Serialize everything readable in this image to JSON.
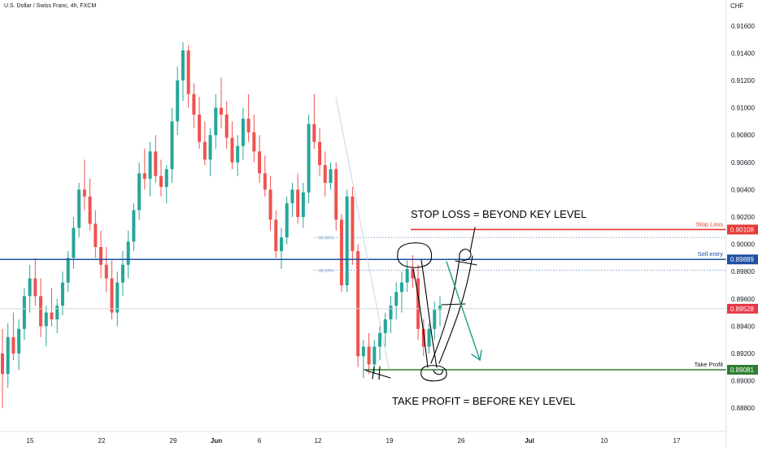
{
  "header": {
    "symbol_title": "U.S. Dollar / Swiss Franc, 4h, FXCM",
    "currency": "CHF"
  },
  "colors": {
    "up": "#26a69a",
    "down": "#ef5350",
    "stop_loss": "#e53935",
    "sell_entry": "#1e4fa3",
    "take_profit": "#2e7d32",
    "current_price": "#e53945",
    "fib": "#7ea3c9",
    "annotation_arrow": "#1f9e8a",
    "ink": "#000000"
  },
  "chart_data": {
    "type": "candlestick",
    "title": "U.S. Dollar / Swiss Franc, 4h, FXCM",
    "y_axis": {
      "unit": "CHF",
      "ylim": [
        0.8868,
        0.9175
      ],
      "ticks": [
        "0.91600",
        "0.91400",
        "0.91200",
        "0.91000",
        "0.90800",
        "0.90600",
        "0.90400",
        "0.90200",
        "0.90000",
        "0.89800",
        "0.89600",
        "0.89400",
        "0.89200",
        "0.89000",
        "0.88800"
      ]
    },
    "x_axis": {
      "ticks": [
        "15",
        "22",
        "29",
        "Jun",
        "6",
        "12",
        "19",
        "26",
        "Jul",
        "10",
        "17"
      ],
      "bold_ticks": [
        "Jun",
        "Jul"
      ]
    },
    "grid": false,
    "price_levels": [
      {
        "name": "Stop Loss",
        "value": "0.90108",
        "price": 0.90108,
        "style": "solid",
        "color": "#e53935"
      },
      {
        "name": "Sell entry",
        "value": "0.89889",
        "price": 0.89889,
        "style": "solid",
        "color": "#1e4fa3"
      },
      {
        "name": "",
        "value": "0.89528",
        "price": 0.89528,
        "style": "solid",
        "color": "#e53945"
      },
      {
        "name": "Take Profit",
        "value": "0.89081",
        "price": 0.89081,
        "style": "solid",
        "color": "#2e7d32"
      }
    ],
    "fib_levels": [
      {
        "label": "50.00%",
        "price": 0.9005
      },
      {
        "label": "38.20%",
        "price": 0.8981
      }
    ],
    "annotations": [
      "STOP LOSS = BEYOND KEY LEVEL",
      "TAKE PROFIT = BEFORE KEY LEVEL"
    ],
    "candles": [
      {
        "o": 0.892,
        "h": 0.8938,
        "l": 0.888,
        "c": 0.8905
      },
      {
        "o": 0.8905,
        "h": 0.8942,
        "l": 0.8895,
        "c": 0.8932
      },
      {
        "o": 0.8932,
        "h": 0.895,
        "l": 0.8915,
        "c": 0.892
      },
      {
        "o": 0.892,
        "h": 0.8945,
        "l": 0.8908,
        "c": 0.8938
      },
      {
        "o": 0.8938,
        "h": 0.8968,
        "l": 0.893,
        "c": 0.8962
      },
      {
        "o": 0.8962,
        "h": 0.8985,
        "l": 0.895,
        "c": 0.8975
      },
      {
        "o": 0.8975,
        "h": 0.899,
        "l": 0.8955,
        "c": 0.8962
      },
      {
        "o": 0.8962,
        "h": 0.8975,
        "l": 0.8932,
        "c": 0.894
      },
      {
        "o": 0.894,
        "h": 0.8955,
        "l": 0.8925,
        "c": 0.895
      },
      {
        "o": 0.895,
        "h": 0.8968,
        "l": 0.894,
        "c": 0.8945
      },
      {
        "o": 0.8945,
        "h": 0.896,
        "l": 0.8935,
        "c": 0.8955
      },
      {
        "o": 0.8955,
        "h": 0.898,
        "l": 0.8948,
        "c": 0.8972
      },
      {
        "o": 0.8972,
        "h": 0.8995,
        "l": 0.8965,
        "c": 0.899
      },
      {
        "o": 0.899,
        "h": 0.902,
        "l": 0.8982,
        "c": 0.9012
      },
      {
        "o": 0.9012,
        "h": 0.9045,
        "l": 0.9005,
        "c": 0.904
      },
      {
        "o": 0.904,
        "h": 0.9062,
        "l": 0.9025,
        "c": 0.9035
      },
      {
        "o": 0.9035,
        "h": 0.9048,
        "l": 0.901,
        "c": 0.9015
      },
      {
        "o": 0.9015,
        "h": 0.9025,
        "l": 0.899,
        "c": 0.8998
      },
      {
        "o": 0.8998,
        "h": 0.901,
        "l": 0.8975,
        "c": 0.8985
      },
      {
        "o": 0.8985,
        "h": 0.8998,
        "l": 0.8965,
        "c": 0.8975
      },
      {
        "o": 0.8975,
        "h": 0.8988,
        "l": 0.8945,
        "c": 0.895
      },
      {
        "o": 0.895,
        "h": 0.898,
        "l": 0.894,
        "c": 0.8972
      },
      {
        "o": 0.8972,
        "h": 0.8995,
        "l": 0.8962,
        "c": 0.8985
      },
      {
        "o": 0.8985,
        "h": 0.901,
        "l": 0.8975,
        "c": 0.9002
      },
      {
        "o": 0.9002,
        "h": 0.903,
        "l": 0.8995,
        "c": 0.9025
      },
      {
        "o": 0.9025,
        "h": 0.906,
        "l": 0.9018,
        "c": 0.9052
      },
      {
        "o": 0.9052,
        "h": 0.907,
        "l": 0.904,
        "c": 0.9048
      },
      {
        "o": 0.9048,
        "h": 0.9075,
        "l": 0.9035,
        "c": 0.9068
      },
      {
        "o": 0.9068,
        "h": 0.908,
        "l": 0.9045,
        "c": 0.905
      },
      {
        "o": 0.905,
        "h": 0.9062,
        "l": 0.9035,
        "c": 0.9042
      },
      {
        "o": 0.9042,
        "h": 0.9058,
        "l": 0.903,
        "c": 0.9055
      },
      {
        "o": 0.9055,
        "h": 0.91,
        "l": 0.9045,
        "c": 0.909
      },
      {
        "o": 0.909,
        "h": 0.913,
        "l": 0.908,
        "c": 0.912
      },
      {
        "o": 0.912,
        "h": 0.9148,
        "l": 0.9105,
        "c": 0.9142
      },
      {
        "o": 0.9142,
        "h": 0.9146,
        "l": 0.91,
        "c": 0.911
      },
      {
        "o": 0.911,
        "h": 0.9118,
        "l": 0.9085,
        "c": 0.9095
      },
      {
        "o": 0.9095,
        "h": 0.9108,
        "l": 0.907,
        "c": 0.9075
      },
      {
        "o": 0.9075,
        "h": 0.909,
        "l": 0.9058,
        "c": 0.9062
      },
      {
        "o": 0.9062,
        "h": 0.9085,
        "l": 0.905,
        "c": 0.908
      },
      {
        "o": 0.908,
        "h": 0.911,
        "l": 0.907,
        "c": 0.91
      },
      {
        "o": 0.91,
        "h": 0.9122,
        "l": 0.9085,
        "c": 0.9095
      },
      {
        "o": 0.9095,
        "h": 0.9105,
        "l": 0.907,
        "c": 0.9078
      },
      {
        "o": 0.9078,
        "h": 0.909,
        "l": 0.9055,
        "c": 0.906
      },
      {
        "o": 0.906,
        "h": 0.908,
        "l": 0.905,
        "c": 0.9072
      },
      {
        "o": 0.9072,
        "h": 0.91,
        "l": 0.9062,
        "c": 0.9092
      },
      {
        "o": 0.9092,
        "h": 0.911,
        "l": 0.9075,
        "c": 0.9082
      },
      {
        "o": 0.9082,
        "h": 0.9095,
        "l": 0.906,
        "c": 0.9068
      },
      {
        "o": 0.9068,
        "h": 0.908,
        "l": 0.9045,
        "c": 0.9052
      },
      {
        "o": 0.9052,
        "h": 0.9065,
        "l": 0.9035,
        "c": 0.904
      },
      {
        "o": 0.904,
        "h": 0.905,
        "l": 0.901,
        "c": 0.9018
      },
      {
        "o": 0.9018,
        "h": 0.9025,
        "l": 0.899,
        "c": 0.8995
      },
      {
        "o": 0.8995,
        "h": 0.9012,
        "l": 0.8982,
        "c": 0.9005
      },
      {
        "o": 0.9005,
        "h": 0.9035,
        "l": 0.9,
        "c": 0.903
      },
      {
        "o": 0.903,
        "h": 0.9045,
        "l": 0.902,
        "c": 0.904
      },
      {
        "o": 0.904,
        "h": 0.9052,
        "l": 0.9015,
        "c": 0.902
      },
      {
        "o": 0.902,
        "h": 0.9045,
        "l": 0.9012,
        "c": 0.9038
      },
      {
        "o": 0.9038,
        "h": 0.9095,
        "l": 0.903,
        "c": 0.9088
      },
      {
        "o": 0.9088,
        "h": 0.911,
        "l": 0.907,
        "c": 0.9075
      },
      {
        "o": 0.9075,
        "h": 0.9085,
        "l": 0.905,
        "c": 0.9058
      },
      {
        "o": 0.9058,
        "h": 0.9068,
        "l": 0.9035,
        "c": 0.9045
      },
      {
        "o": 0.9045,
        "h": 0.906,
        "l": 0.904,
        "c": 0.9055
      },
      {
        "o": 0.9055,
        "h": 0.906,
        "l": 0.901,
        "c": 0.9018
      },
      {
        "o": 0.9018,
        "h": 0.9022,
        "l": 0.8965,
        "c": 0.897
      },
      {
        "o": 0.897,
        "h": 0.904,
        "l": 0.8965,
        "c": 0.9035
      },
      {
        "o": 0.9035,
        "h": 0.9042,
        "l": 0.8985,
        "c": 0.8995
      },
      {
        "o": 0.8995,
        "h": 0.9,
        "l": 0.891,
        "c": 0.8918
      },
      {
        "o": 0.8918,
        "h": 0.893,
        "l": 0.8902,
        "c": 0.8925
      },
      {
        "o": 0.8925,
        "h": 0.8935,
        "l": 0.8905,
        "c": 0.8912
      },
      {
        "o": 0.8912,
        "h": 0.893,
        "l": 0.8905,
        "c": 0.8925
      },
      {
        "o": 0.8925,
        "h": 0.894,
        "l": 0.8915,
        "c": 0.8935
      },
      {
        "o": 0.8935,
        "h": 0.895,
        "l": 0.8925,
        "c": 0.8945
      },
      {
        "o": 0.8945,
        "h": 0.8962,
        "l": 0.8935,
        "c": 0.8955
      },
      {
        "o": 0.8955,
        "h": 0.8972,
        "l": 0.8945,
        "c": 0.8965
      },
      {
        "o": 0.8965,
        "h": 0.898,
        "l": 0.895,
        "c": 0.8972
      },
      {
        "o": 0.8972,
        "h": 0.8988,
        "l": 0.8965,
        "c": 0.8982
      },
      {
        "o": 0.8982,
        "h": 0.8992,
        "l": 0.8968,
        "c": 0.8975
      },
      {
        "o": 0.8975,
        "h": 0.8985,
        "l": 0.893,
        "c": 0.8938
      },
      {
        "o": 0.8938,
        "h": 0.8945,
        "l": 0.8918,
        "c": 0.8925
      },
      {
        "o": 0.8925,
        "h": 0.8942,
        "l": 0.892,
        "c": 0.8938
      },
      {
        "o": 0.8938,
        "h": 0.8958,
        "l": 0.893,
        "c": 0.8952
      },
      {
        "o": 0.8952,
        "h": 0.8962,
        "l": 0.894,
        "c": 0.8955
      }
    ]
  }
}
